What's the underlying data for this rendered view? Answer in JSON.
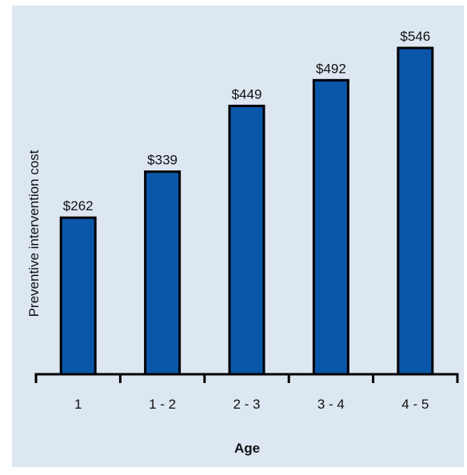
{
  "chart_data": {
    "type": "bar",
    "categories": [
      "1",
      "1 - 2",
      "2 - 3",
      "3 - 4",
      "4 - 5"
    ],
    "values": [
      262,
      339,
      449,
      492,
      546
    ],
    "data_labels": [
      "$262",
      "$339",
      "$449",
      "$492",
      "$546"
    ],
    "xlabel": "Age",
    "ylabel": "Preventive intervention cost",
    "ylim": [
      0,
      560
    ],
    "grid": false,
    "colors": {
      "background": "#dce7f2",
      "bar_fill": "#0a56a8",
      "bar_stroke": "#000000",
      "axis": "#000000"
    }
  }
}
